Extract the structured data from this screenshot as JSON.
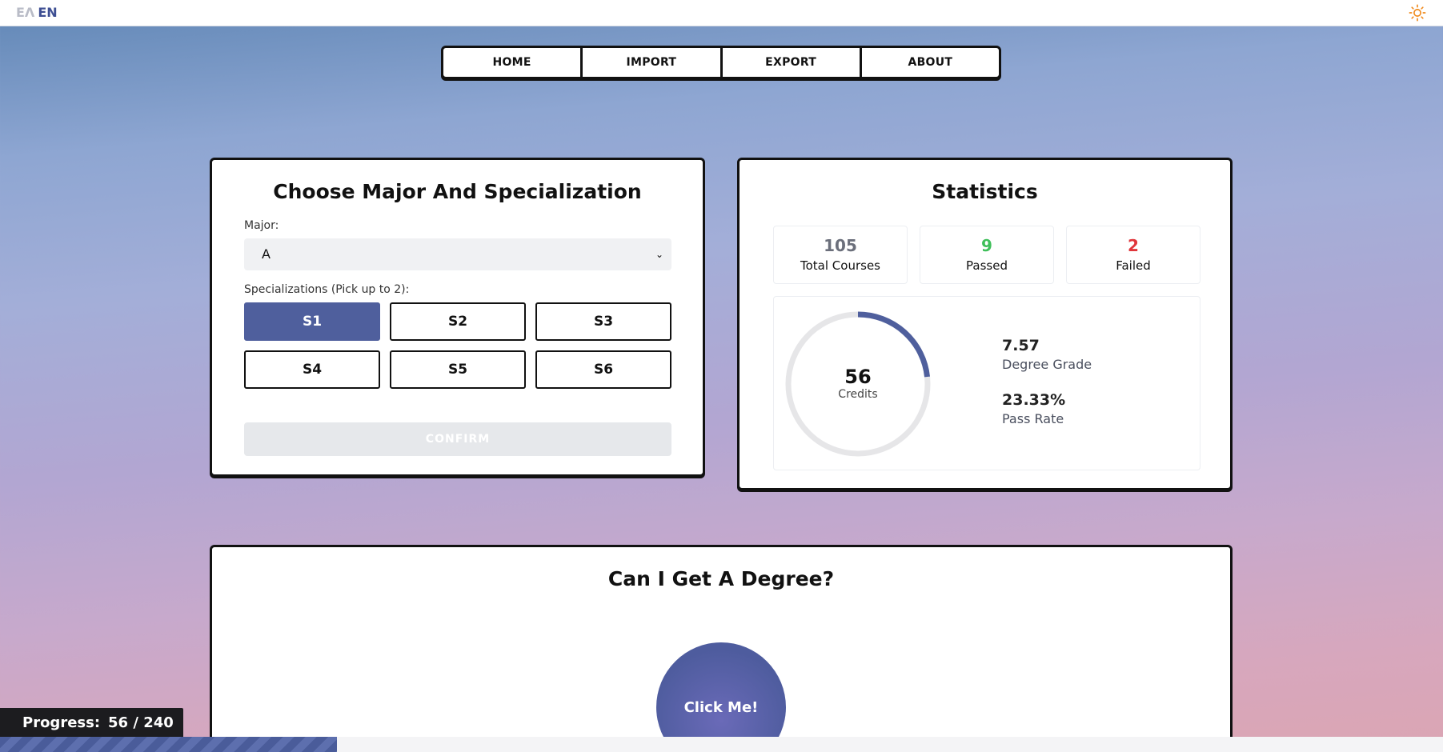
{
  "header": {
    "lang_inactive": "EΛ",
    "lang_active": "EN",
    "theme_icon": "sun-icon"
  },
  "nav": {
    "items": [
      "HOME",
      "IMPORT",
      "EXPORT",
      "ABOUT"
    ]
  },
  "major_card": {
    "title": "Choose Major And Specialization",
    "major_label": "Major:",
    "major_value": "A",
    "spec_label": "Specializations (Pick up to 2):",
    "specializations": [
      "S1",
      "S2",
      "S3",
      "S4",
      "S5",
      "S6"
    ],
    "selected": [
      "S1"
    ],
    "confirm_label": "CONFIRM"
  },
  "stats_card": {
    "title": "Statistics",
    "total_courses": {
      "value": "105",
      "label": "Total Courses"
    },
    "passed": {
      "value": "9",
      "label": "Passed"
    },
    "failed": {
      "value": "2",
      "label": "Failed"
    },
    "credits": {
      "value": "56",
      "label": "Credits",
      "max": 240
    },
    "degree_grade": {
      "value": "7.57",
      "label": "Degree Grade"
    },
    "pass_rate": {
      "value": "23.33%",
      "label": "Pass Rate"
    }
  },
  "degree_card": {
    "title": "Can I Get A Degree?",
    "button_label": "Click Me!"
  },
  "progress": {
    "label": "Progress:",
    "value_text": "56 / 240",
    "current": 56,
    "total": 240
  },
  "colors": {
    "accent": "#4f5f9d",
    "passed": "#3fbf5a",
    "failed": "#e0363b"
  }
}
